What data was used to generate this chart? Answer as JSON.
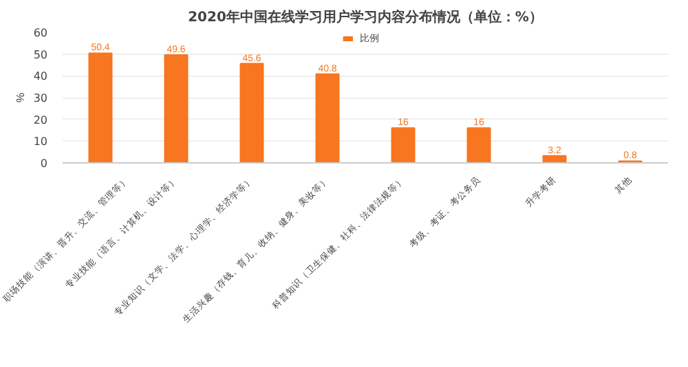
{
  "chart_data": {
    "type": "bar",
    "title": "2020年中国在线学习用户学习内容分布情况（单位：%）",
    "ylabel": "%",
    "categories": [
      "职场技能（演讲、晋升、交流、管理等）",
      "专业技能（语言、计算机、设计等）",
      "专业知识（文学、法学、心理学、经济学等）",
      "生活兴趣（存钱、育儿、收纳、健身、美妆等）",
      "科普知识（卫生保健、社科、法律法规等）",
      "考级、考证、考公务员",
      "升学考研",
      "其他"
    ],
    "series": [
      {
        "name": "比例",
        "color": "#f7761f",
        "values": [
          50.4,
          49.6,
          45.6,
          40.8,
          16,
          16,
          3.2,
          0.8
        ]
      }
    ],
    "ylim": [
      0,
      60
    ],
    "yticks": [
      0,
      10,
      20,
      30,
      40,
      50,
      60
    ],
    "grid": "y",
    "legend": "top",
    "data_labels": true
  }
}
